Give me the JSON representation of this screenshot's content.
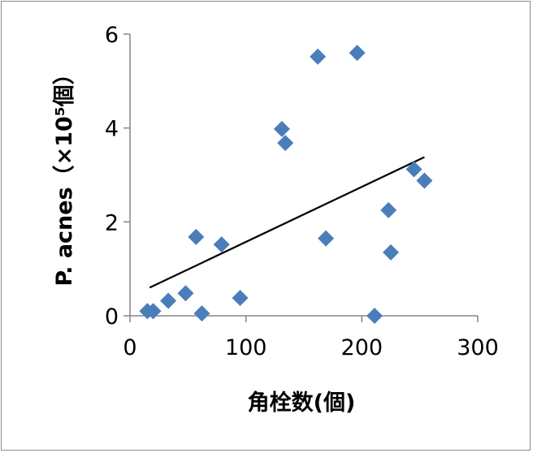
{
  "chart_data": {
    "type": "scatter",
    "xlabel": "角栓数(個)",
    "ylabel": "P. acnes（×10⁵個）",
    "xlim": [
      0,
      300
    ],
    "ylim": [
      0,
      6
    ],
    "x_ticks": [
      "0",
      "100",
      "200",
      "300"
    ],
    "y_ticks": [
      "0",
      "2",
      "4",
      "6"
    ],
    "grid": false,
    "legend": "none",
    "marker": "diamond",
    "marker_color": "#4a7ebb",
    "trendline_color": "#000000",
    "points": [
      {
        "x": 15,
        "y": 0.1
      },
      {
        "x": 20,
        "y": 0.1
      },
      {
        "x": 33,
        "y": 0.32
      },
      {
        "x": 48,
        "y": 0.48
      },
      {
        "x": 57,
        "y": 1.68
      },
      {
        "x": 62,
        "y": 0.05
      },
      {
        "x": 79,
        "y": 1.52
      },
      {
        "x": 95,
        "y": 0.38
      },
      {
        "x": 131,
        "y": 3.98
      },
      {
        "x": 134,
        "y": 3.68
      },
      {
        "x": 162,
        "y": 5.52
      },
      {
        "x": 169,
        "y": 1.65
      },
      {
        "x": 196,
        "y": 5.6
      },
      {
        "x": 211,
        "y": 0.0
      },
      {
        "x": 223,
        "y": 2.25
      },
      {
        "x": 225,
        "y": 1.35
      },
      {
        "x": 245,
        "y": 3.12
      },
      {
        "x": 254,
        "y": 2.88
      }
    ],
    "trendline": {
      "x": [
        17,
        254
      ],
      "y": [
        0.6,
        3.38
      ]
    }
  }
}
